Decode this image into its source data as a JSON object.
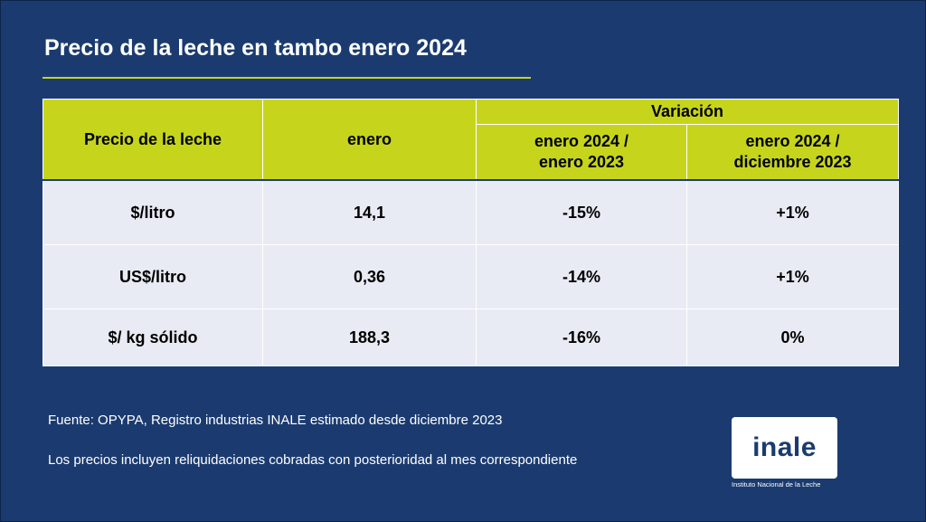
{
  "title": "Precio de la leche en tambo enero 2024",
  "colors": {
    "background": "#1b3b70",
    "accent": "#c6d51c",
    "row_background": "#e8ebf3"
  },
  "table": {
    "header": {
      "col1": "Precio de la leche",
      "col2": "enero",
      "group": "Variación",
      "col3_line1": "enero 2024 /",
      "col3_line2": "enero 2023",
      "col4_line1": "enero 2024 /",
      "col4_line2": "diciembre  2023"
    },
    "rows": [
      {
        "label": "$/litro",
        "value": "14,1",
        "var_year": "-15%",
        "var_month": "+1%"
      },
      {
        "label": "US$/litro",
        "value": "0,36",
        "var_year": "-14%",
        "var_month": "+1%"
      },
      {
        "label": "$/ kg sólido",
        "value": "188,3",
        "var_year": "-16%",
        "var_month": "0%"
      }
    ]
  },
  "notes": {
    "source": "Fuente: OPYPA, Registro industrias INALE estimado desde diciembre 2023",
    "disclaimer": "Los precios incluyen reliquidaciones cobradas con posterioridad al mes correspondiente"
  },
  "logo": {
    "word": "inale",
    "caption": "Instituto Nacional de la Leche"
  }
}
